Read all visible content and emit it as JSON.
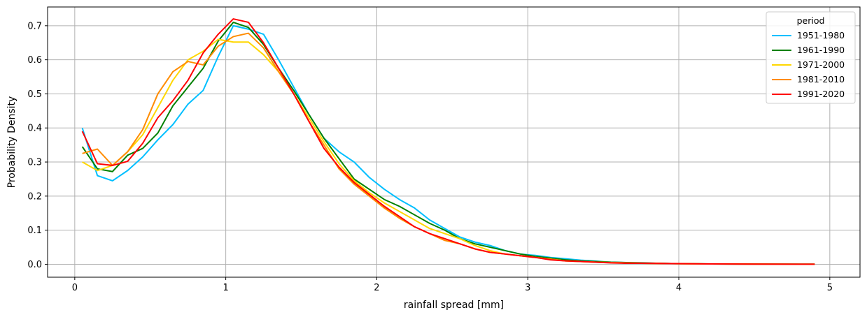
{
  "chart_data": {
    "type": "line",
    "title": "",
    "xlabel": "rainfall spread [mm]",
    "ylabel": "Probability Density",
    "xlim": [
      -0.18,
      5.2
    ],
    "ylim": [
      -0.038,
      0.755
    ],
    "xticks": [
      0,
      1,
      2,
      3,
      4,
      5
    ],
    "yticks": [
      0.0,
      0.1,
      0.2,
      0.3,
      0.4,
      0.5,
      0.6,
      0.7
    ],
    "ytick_labels": [
      "0.0",
      "0.1",
      "0.2",
      "0.3",
      "0.4",
      "0.5",
      "0.6",
      "0.7"
    ],
    "grid": true,
    "legend": {
      "title": "period",
      "placement": "top-right"
    },
    "series": [
      {
        "name": "1951-1980",
        "color": "#00bfff",
        "points": [
          [
            0.05,
            0.4
          ],
          [
            0.15,
            0.26
          ],
          [
            0.25,
            0.245
          ],
          [
            0.35,
            0.275
          ],
          [
            0.45,
            0.315
          ],
          [
            0.55,
            0.365
          ],
          [
            0.65,
            0.41
          ],
          [
            0.75,
            0.47
          ],
          [
            0.85,
            0.51
          ],
          [
            0.95,
            0.61
          ],
          [
            1.05,
            0.7
          ],
          [
            1.15,
            0.69
          ],
          [
            1.25,
            0.675
          ],
          [
            1.35,
            0.6
          ],
          [
            1.45,
            0.52
          ],
          [
            1.55,
            0.44
          ],
          [
            1.65,
            0.37
          ],
          [
            1.75,
            0.33
          ],
          [
            1.85,
            0.3
          ],
          [
            1.95,
            0.255
          ],
          [
            2.05,
            0.22
          ],
          [
            2.15,
            0.19
          ],
          [
            2.25,
            0.165
          ],
          [
            2.35,
            0.13
          ],
          [
            2.45,
            0.105
          ],
          [
            2.55,
            0.08
          ],
          [
            2.65,
            0.065
          ],
          [
            2.75,
            0.055
          ],
          [
            2.85,
            0.04
          ],
          [
            2.95,
            0.03
          ],
          [
            3.05,
            0.026
          ],
          [
            3.15,
            0.02
          ],
          [
            3.25,
            0.016
          ],
          [
            3.35,
            0.012
          ],
          [
            3.45,
            0.009
          ],
          [
            3.55,
            0.006
          ],
          [
            3.65,
            0.005
          ],
          [
            3.75,
            0.004
          ],
          [
            3.85,
            0.003
          ],
          [
            3.95,
            0.002
          ],
          [
            4.05,
            0.002
          ],
          [
            4.2,
            0.001
          ],
          [
            4.4,
            0.0005
          ],
          [
            4.6,
            0.0003
          ],
          [
            4.9,
            0.0002
          ]
        ]
      },
      {
        "name": "1961-1990",
        "color": "#008000",
        "points": [
          [
            0.05,
            0.345
          ],
          [
            0.15,
            0.28
          ],
          [
            0.25,
            0.272
          ],
          [
            0.35,
            0.32
          ],
          [
            0.45,
            0.34
          ],
          [
            0.55,
            0.385
          ],
          [
            0.65,
            0.465
          ],
          [
            0.75,
            0.52
          ],
          [
            0.85,
            0.575
          ],
          [
            0.95,
            0.655
          ],
          [
            1.05,
            0.71
          ],
          [
            1.15,
            0.695
          ],
          [
            1.25,
            0.645
          ],
          [
            1.35,
            0.575
          ],
          [
            1.45,
            0.51
          ],
          [
            1.55,
            0.44
          ],
          [
            1.65,
            0.37
          ],
          [
            1.75,
            0.31
          ],
          [
            1.85,
            0.25
          ],
          [
            1.95,
            0.22
          ],
          [
            2.05,
            0.19
          ],
          [
            2.15,
            0.17
          ],
          [
            2.25,
            0.145
          ],
          [
            2.35,
            0.12
          ],
          [
            2.45,
            0.1
          ],
          [
            2.55,
            0.075
          ],
          [
            2.65,
            0.06
          ],
          [
            2.75,
            0.05
          ],
          [
            2.85,
            0.04
          ],
          [
            2.95,
            0.03
          ],
          [
            3.05,
            0.023
          ],
          [
            3.15,
            0.018
          ],
          [
            3.25,
            0.013
          ],
          [
            3.35,
            0.01
          ],
          [
            3.45,
            0.008
          ],
          [
            3.55,
            0.006
          ],
          [
            3.65,
            0.005
          ],
          [
            3.75,
            0.004
          ],
          [
            3.85,
            0.003
          ],
          [
            3.95,
            0.002
          ],
          [
            4.2,
            0.001
          ],
          [
            4.5,
            0.0005
          ],
          [
            4.9,
            0.0002
          ]
        ]
      },
      {
        "name": "1971-2000",
        "color": "#ffd700",
        "points": [
          [
            0.05,
            0.3
          ],
          [
            0.15,
            0.275
          ],
          [
            0.25,
            0.29
          ],
          [
            0.35,
            0.33
          ],
          [
            0.45,
            0.38
          ],
          [
            0.55,
            0.46
          ],
          [
            0.65,
            0.54
          ],
          [
            0.75,
            0.6
          ],
          [
            0.85,
            0.625
          ],
          [
            0.95,
            0.66
          ],
          [
            1.05,
            0.652
          ],
          [
            1.15,
            0.652
          ],
          [
            1.25,
            0.615
          ],
          [
            1.35,
            0.565
          ],
          [
            1.45,
            0.5
          ],
          [
            1.55,
            0.43
          ],
          [
            1.65,
            0.36
          ],
          [
            1.75,
            0.295
          ],
          [
            1.85,
            0.245
          ],
          [
            1.95,
            0.21
          ],
          [
            2.05,
            0.18
          ],
          [
            2.15,
            0.155
          ],
          [
            2.25,
            0.13
          ],
          [
            2.35,
            0.105
          ],
          [
            2.45,
            0.09
          ],
          [
            2.55,
            0.075
          ],
          [
            2.65,
            0.055
          ],
          [
            2.75,
            0.04
          ],
          [
            2.85,
            0.03
          ],
          [
            2.95,
            0.025
          ],
          [
            3.05,
            0.02
          ],
          [
            3.15,
            0.015
          ],
          [
            3.25,
            0.01
          ],
          [
            3.35,
            0.008
          ],
          [
            3.45,
            0.006
          ],
          [
            3.55,
            0.005
          ],
          [
            3.65,
            0.004
          ],
          [
            3.75,
            0.003
          ],
          [
            3.95,
            0.002
          ],
          [
            4.2,
            0.001
          ],
          [
            4.5,
            0.0005
          ],
          [
            4.9,
            0.0002
          ]
        ]
      },
      {
        "name": "1981-2010",
        "color": "#ff8c00",
        "points": [
          [
            0.05,
            0.325
          ],
          [
            0.15,
            0.338
          ],
          [
            0.25,
            0.29
          ],
          [
            0.35,
            0.33
          ],
          [
            0.45,
            0.395
          ],
          [
            0.55,
            0.5
          ],
          [
            0.65,
            0.565
          ],
          [
            0.75,
            0.595
          ],
          [
            0.85,
            0.585
          ],
          [
            0.95,
            0.64
          ],
          [
            1.05,
            0.668
          ],
          [
            1.15,
            0.678
          ],
          [
            1.25,
            0.635
          ],
          [
            1.35,
            0.565
          ],
          [
            1.45,
            0.5
          ],
          [
            1.55,
            0.42
          ],
          [
            1.65,
            0.35
          ],
          [
            1.75,
            0.28
          ],
          [
            1.85,
            0.235
          ],
          [
            1.95,
            0.2
          ],
          [
            2.05,
            0.165
          ],
          [
            2.15,
            0.135
          ],
          [
            2.25,
            0.11
          ],
          [
            2.35,
            0.09
          ],
          [
            2.45,
            0.07
          ],
          [
            2.55,
            0.06
          ],
          [
            2.65,
            0.045
          ],
          [
            2.75,
            0.035
          ],
          [
            2.85,
            0.03
          ],
          [
            2.95,
            0.025
          ],
          [
            3.05,
            0.02
          ],
          [
            3.15,
            0.015
          ],
          [
            3.25,
            0.01
          ],
          [
            3.35,
            0.008
          ],
          [
            3.45,
            0.006
          ],
          [
            3.55,
            0.005
          ],
          [
            3.65,
            0.004
          ],
          [
            3.75,
            0.003
          ],
          [
            3.95,
            0.002
          ],
          [
            4.2,
            0.001
          ],
          [
            4.5,
            0.0005
          ],
          [
            4.9,
            0.0002
          ]
        ]
      },
      {
        "name": "1991-2020",
        "color": "#ff0000",
        "points": [
          [
            0.05,
            0.39
          ],
          [
            0.15,
            0.295
          ],
          [
            0.25,
            0.29
          ],
          [
            0.35,
            0.302
          ],
          [
            0.45,
            0.355
          ],
          [
            0.55,
            0.43
          ],
          [
            0.65,
            0.48
          ],
          [
            0.75,
            0.54
          ],
          [
            0.85,
            0.62
          ],
          [
            0.95,
            0.675
          ],
          [
            1.05,
            0.72
          ],
          [
            1.15,
            0.71
          ],
          [
            1.25,
            0.65
          ],
          [
            1.35,
            0.575
          ],
          [
            1.45,
            0.5
          ],
          [
            1.55,
            0.42
          ],
          [
            1.65,
            0.34
          ],
          [
            1.75,
            0.285
          ],
          [
            1.85,
            0.24
          ],
          [
            1.95,
            0.205
          ],
          [
            2.05,
            0.17
          ],
          [
            2.15,
            0.14
          ],
          [
            2.25,
            0.11
          ],
          [
            2.35,
            0.09
          ],
          [
            2.45,
            0.075
          ],
          [
            2.55,
            0.06
          ],
          [
            2.65,
            0.045
          ],
          [
            2.75,
            0.035
          ],
          [
            2.85,
            0.03
          ],
          [
            2.95,
            0.025
          ],
          [
            3.05,
            0.02
          ],
          [
            3.15,
            0.013
          ],
          [
            3.25,
            0.01
          ],
          [
            3.35,
            0.008
          ],
          [
            3.45,
            0.006
          ],
          [
            3.55,
            0.004
          ],
          [
            3.65,
            0.003
          ],
          [
            3.75,
            0.003
          ],
          [
            3.95,
            0.002
          ],
          [
            4.2,
            0.001
          ],
          [
            4.5,
            0.0005
          ],
          [
            4.9,
            0.0002
          ]
        ]
      }
    ]
  }
}
